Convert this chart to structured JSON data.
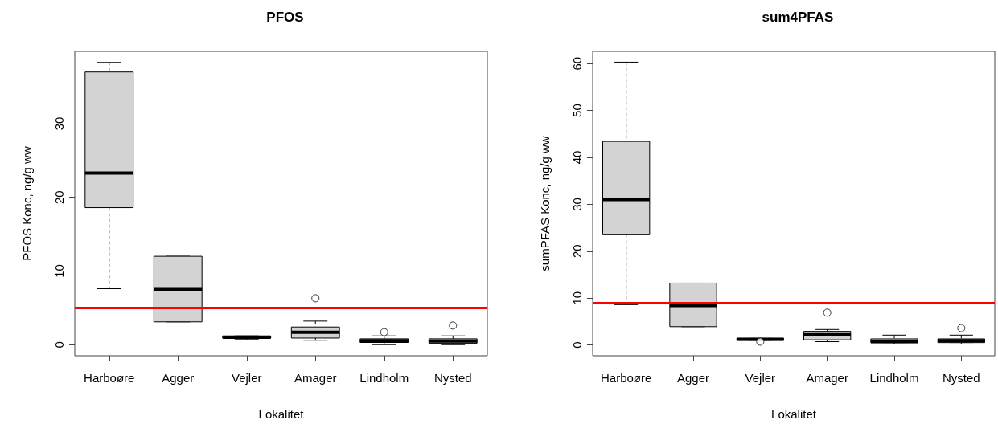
{
  "chart_data": [
    {
      "type": "box",
      "title": "PFOS",
      "xlabel": "Lokalitet",
      "ylabel": "PFOS Konc, ng/g ww",
      "categories": [
        "Harboøre",
        "Agger",
        "Vejler",
        "Amager",
        "Lindholm",
        "Nysted"
      ],
      "ylim": [
        -1.5,
        39.8
      ],
      "yticks": [
        0,
        10,
        20,
        30
      ],
      "grid": false,
      "series": [
        {
          "type": "box",
          "color": "#d3d3d3",
          "boxes": [
            {
              "low": 7.6,
              "q1": 18.6,
              "median": 23.3,
              "q3": 37.0,
              "high": 38.3
            },
            {
              "low": 3.1,
              "q1": 3.1,
              "median": 7.5,
              "q3": 12.0,
              "high": 12.0
            },
            {
              "low": 0.7,
              "q1": 0.9,
              "median": 1.0,
              "q3": 1.2,
              "high": 1.2
            },
            {
              "low": 0.6,
              "q1": 0.9,
              "median": 1.7,
              "q3": 2.4,
              "high": 3.2,
              "outliers": [
                6.3
              ]
            },
            {
              "low": 0.0,
              "q1": 0.3,
              "median": 0.55,
              "q3": 0.8,
              "high": 1.2,
              "outliers": [
                1.7
              ]
            },
            {
              "low": 0.0,
              "q1": 0.2,
              "median": 0.5,
              "q3": 0.8,
              "high": 1.2,
              "outliers": [
                2.6
              ]
            }
          ]
        }
      ],
      "ref_lines": [
        {
          "axis": "y",
          "value": 5,
          "color": "#ff0000"
        }
      ]
    },
    {
      "type": "box",
      "title": "sum4PFAS",
      "xlabel": "Lokalitet",
      "ylabel": "sumPFAS Konc, ng/g ww",
      "categories": [
        "Harboøre",
        "Agger",
        "Vejler",
        "Amager",
        "Lindholm",
        "Nysted"
      ],
      "ylim": [
        -2.3,
        62.6
      ],
      "yticks": [
        0,
        10,
        20,
        30,
        40,
        50,
        60
      ],
      "grid": false,
      "series": [
        {
          "type": "box",
          "color": "#d3d3d3",
          "boxes": [
            {
              "low": 8.6,
              "q1": 23.5,
              "median": 31.0,
              "q3": 43.4,
              "high": 60.3
            },
            {
              "low": 3.9,
              "q1": 3.9,
              "median": 8.4,
              "q3": 13.2,
              "high": 13.2
            },
            {
              "low": 1.0,
              "q1": 1.0,
              "median": 1.2,
              "q3": 1.4,
              "high": 1.4,
              "outliers": [
                0.7
              ]
            },
            {
              "low": 0.7,
              "q1": 1.1,
              "median": 2.2,
              "q3": 2.9,
              "high": 3.3,
              "outliers": [
                6.9
              ]
            },
            {
              "low": 0.2,
              "q1": 0.5,
              "median": 0.7,
              "q3": 1.3,
              "high": 2.1
            },
            {
              "low": 0.2,
              "q1": 0.5,
              "median": 0.9,
              "q3": 1.3,
              "high": 2.1,
              "outliers": [
                3.6
              ]
            }
          ]
        }
      ],
      "ref_lines": [
        {
          "axis": "y",
          "value": 8.9,
          "color": "#ff0000"
        }
      ]
    }
  ]
}
